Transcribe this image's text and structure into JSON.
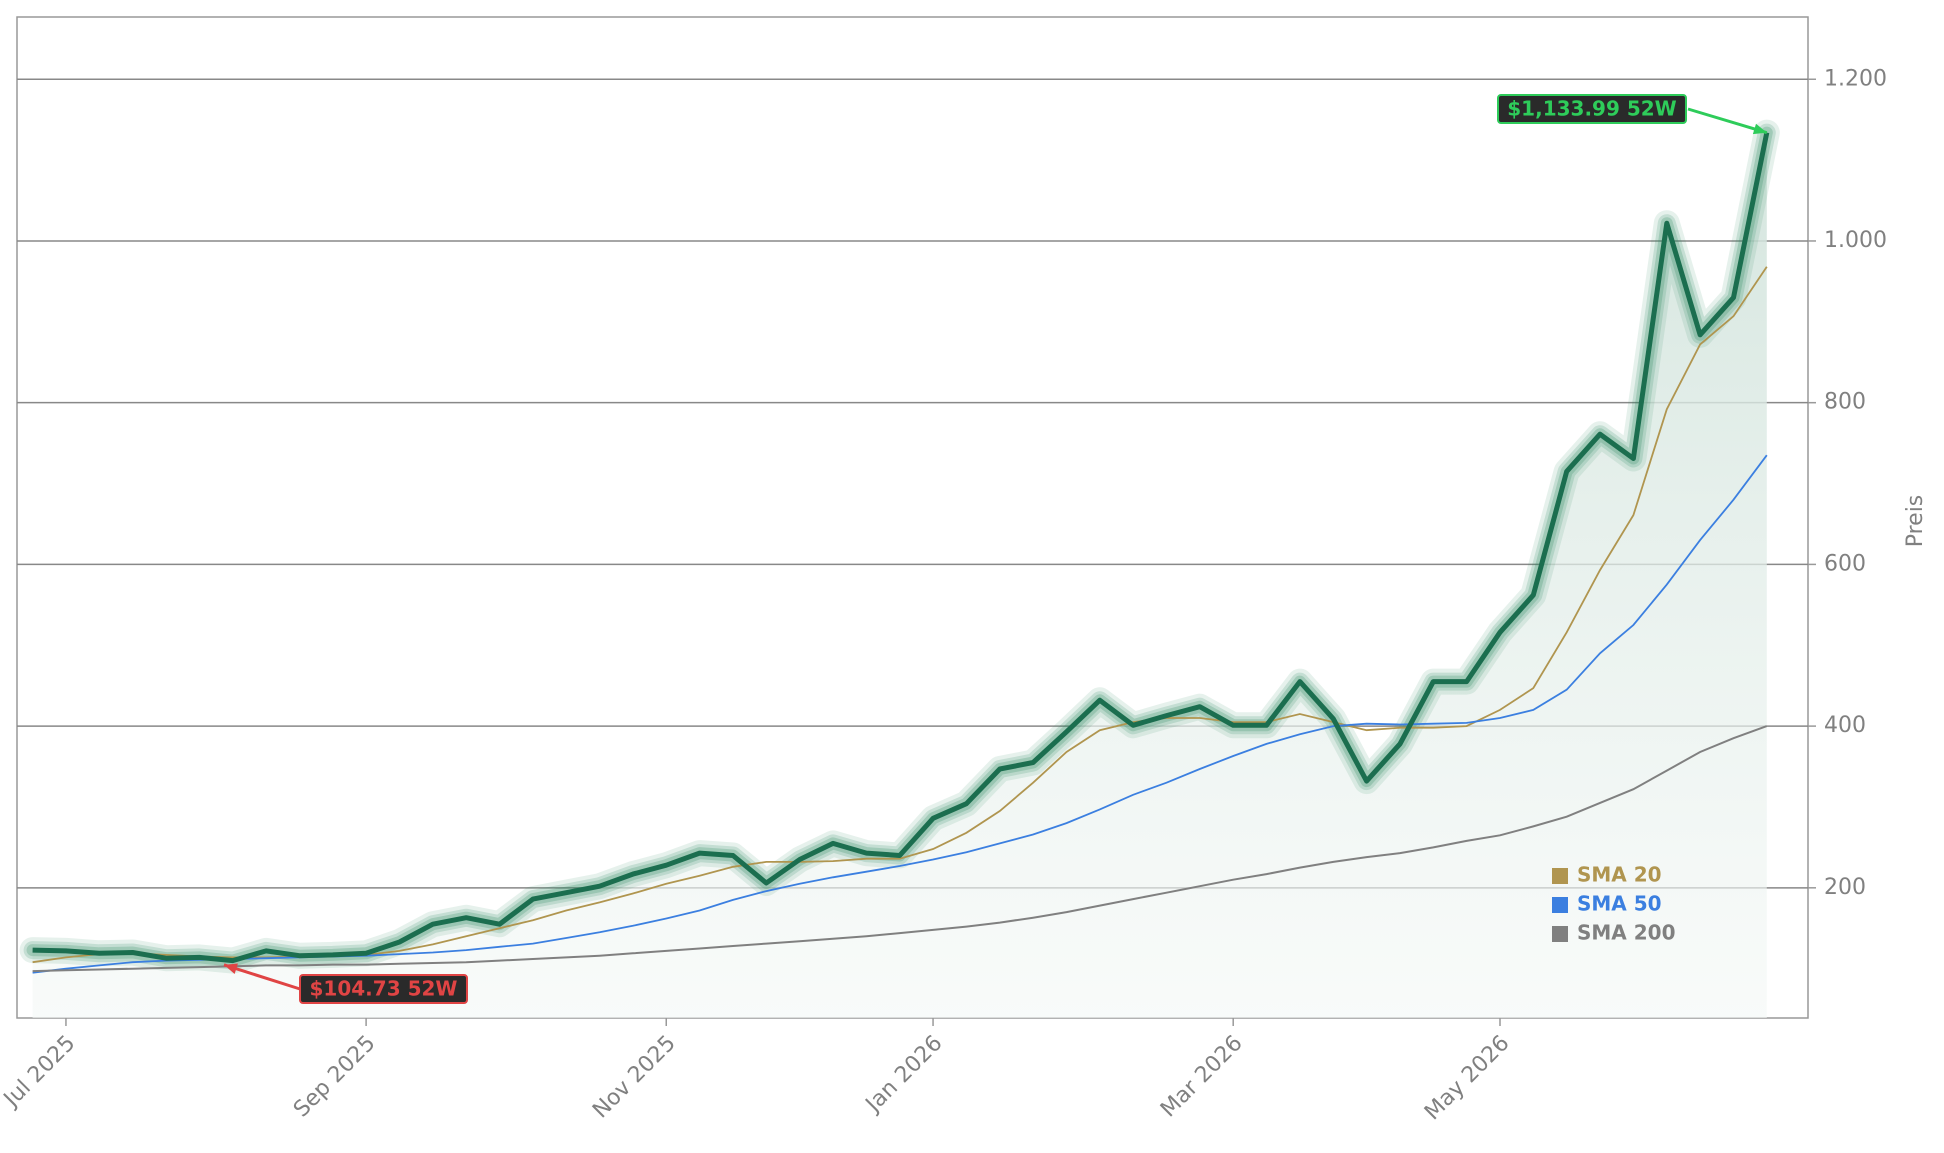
{
  "chart_data": {
    "type": "line",
    "y_label": "Preis",
    "ylim": [
      39,
      1277
    ],
    "yticks": [
      200,
      400,
      600,
      800,
      {
        "value": 1000,
        "label": "1.000"
      },
      {
        "value": 1200,
        "label": "1.200"
      }
    ],
    "grid": true,
    "legend": "lower right",
    "categories": [
      null,
      "Jul 2025",
      null,
      null,
      null,
      null,
      null,
      null,
      null,
      null,
      "Sep 2025",
      null,
      null,
      null,
      null,
      null,
      null,
      null,
      null,
      "Nov 2025",
      null,
      null,
      null,
      null,
      null,
      null,
      null,
      "Jan 2026",
      null,
      null,
      null,
      null,
      null,
      null,
      null,
      null,
      "Mar 2026",
      null,
      null,
      null,
      null,
      null,
      null,
      null,
      "May 2026",
      null,
      null,
      null,
      null,
      null,
      null,
      null,
      null
    ],
    "price": {
      "color": "#1b6e4f",
      "values": [
        123,
        122,
        119,
        120,
        113,
        114,
        110,
        122,
        116,
        117,
        119,
        133,
        155,
        163,
        155,
        186,
        194,
        202,
        217,
        228,
        243,
        240,
        206,
        235,
        255,
        243,
        240,
        286,
        304,
        347,
        355,
        393,
        432,
        401,
        413,
        424,
        401,
        401,
        455,
        409,
        332,
        378,
        455,
        455,
        516,
        562,
        715,
        761,
        731,
        1022,
        884,
        930,
        1133.99
      ]
    },
    "series": [
      {
        "name": "SMA 20",
        "color": "#b0954f",
        "values": [
          108,
          114,
          118,
          119,
          117,
          115,
          114,
          114,
          115,
          116,
          117,
          122,
          130,
          140,
          150,
          160,
          172,
          182,
          193,
          205,
          215,
          226,
          232,
          232,
          233,
          236,
          236,
          248,
          268,
          295,
          330,
          368,
          395,
          405,
          410,
          410,
          405,
          405,
          415,
          405,
          395,
          398,
          398,
          400,
          420,
          447,
          516,
          593,
          661,
          792,
          872,
          907,
          968
        ]
      },
      {
        "name": "SMA 50",
        "color": "#3b7fe0",
        "values": [
          95,
          100,
          104,
          108,
          110,
          111,
          112,
          113,
          114,
          115,
          116,
          118,
          120,
          123,
          127,
          131,
          138,
          145,
          153,
          162,
          172,
          185,
          196,
          205,
          213,
          220,
          227,
          235,
          244,
          255,
          266,
          280,
          297,
          315,
          330,
          347,
          363,
          378,
          390,
          400,
          403,
          402,
          403,
          404,
          410,
          420,
          445,
          490,
          525,
          575,
          630,
          680,
          735
        ]
      },
      {
        "name": "SMA 200",
        "color": "#808080",
        "values": [
          97,
          98,
          99,
          100,
          101,
          102,
          103,
          104,
          104,
          105,
          105,
          106,
          107,
          108,
          110,
          112,
          114,
          116,
          119,
          122,
          125,
          128,
          131,
          134,
          137,
          140,
          144,
          148,
          152,
          157,
          163,
          170,
          178,
          186,
          194,
          202,
          210,
          217,
          225,
          232,
          238,
          243,
          250,
          258,
          265,
          276,
          288,
          305,
          322,
          345,
          368,
          385,
          400
        ]
      }
    ],
    "annotations": [
      {
        "text": "$1,133.99 52W",
        "value": 1133.99,
        "color": "#2ecc5a"
      },
      {
        "text": "$104.73 52W",
        "value": 104.73,
        "color": "#e04444"
      }
    ]
  }
}
